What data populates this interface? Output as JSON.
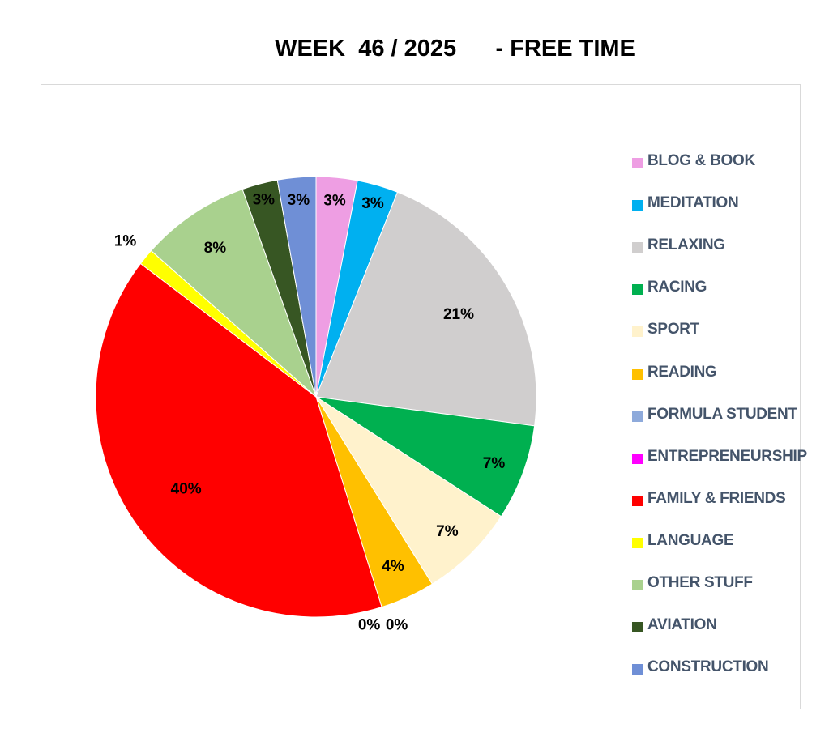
{
  "chart_data": {
    "type": "pie",
    "title": "WEEK  46 / 2025      - FREE TIME",
    "legend_position": "right",
    "slices": [
      {
        "label": "BLOG & BOOK",
        "value": 3,
        "display": "3%",
        "color": "#ee9ee3"
      },
      {
        "label": "MEDITATION",
        "value": 3,
        "display": "3%",
        "color": "#00b0f0"
      },
      {
        "label": "RELAXING",
        "value": 21,
        "display": "21%",
        "color": "#d0cece"
      },
      {
        "label": "RACING",
        "value": 7,
        "display": "7%",
        "color": "#00b050"
      },
      {
        "label": "SPORT",
        "value": 7,
        "display": "7%",
        "color": "#fff2cc"
      },
      {
        "label": "READING",
        "value": 4,
        "display": "4%",
        "color": "#ffc000"
      },
      {
        "label": "FORMULA STUDENT",
        "value": 0,
        "display": "0%",
        "color": "#8eaadb"
      },
      {
        "label": "ENTREPRENEURSHIP",
        "value": 0,
        "display": "0%",
        "color": "#ff00ff"
      },
      {
        "label": "FAMILY & FRIENDS",
        "value": 40,
        "display": "40%",
        "color": "#ff0000"
      },
      {
        "label": "LANGUAGE",
        "value": 1.2,
        "display": "1%",
        "color": "#ffff00"
      },
      {
        "label": "OTHER STUFF",
        "value": 8,
        "display": "8%",
        "color": "#a9d18e"
      },
      {
        "label": "AVIATION",
        "value": 2.6,
        "display": "3%",
        "color": "#375623"
      },
      {
        "label": "CONSTRUCTION",
        "value": 2.8,
        "display": "3%",
        "color": "#6f8fd6"
      }
    ]
  }
}
